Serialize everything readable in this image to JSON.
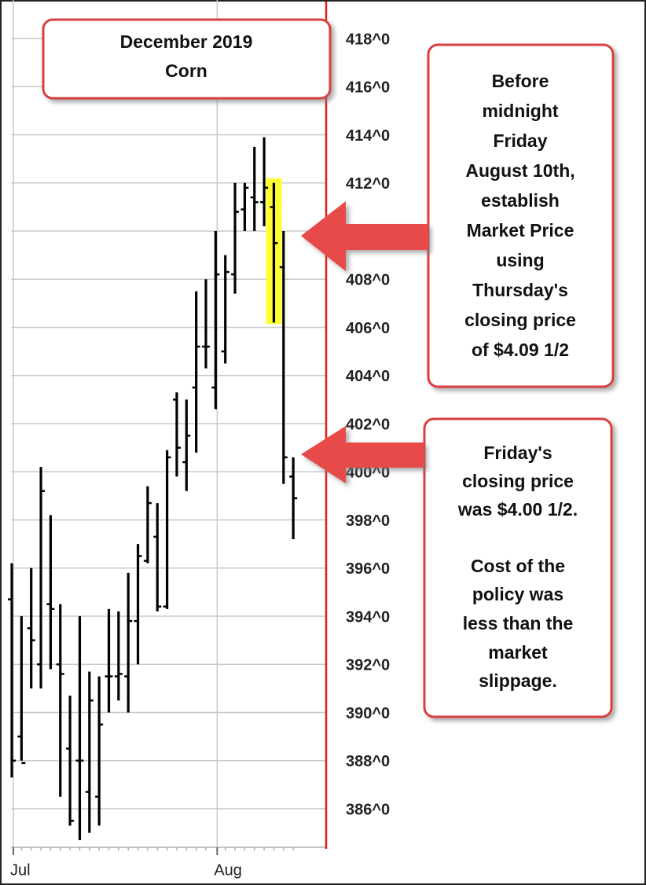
{
  "chart_data": {
    "type": "ohlc",
    "categories": [
      "Jul",
      null,
      null,
      null,
      null,
      null,
      null,
      null,
      null,
      null,
      null,
      null,
      null,
      null,
      null,
      null,
      null,
      null,
      null,
      null,
      null,
      "Aug",
      null,
      null,
      null,
      null,
      null,
      null,
      null,
      null
    ],
    "open": [
      394.7,
      389,
      393.5,
      392,
      394.5,
      392,
      388.5,
      388,
      386.7,
      386.5,
      391.5,
      391.5,
      391.5,
      393.8,
      396.3,
      397.3,
      394.4,
      403,
      400.4,
      403.5,
      405.2,
      403.5,
      405,
      408.2,
      410.9,
      411.4,
      411.2,
      411,
      408.5,
      399.8
    ],
    "high": [
      396.2,
      394,
      396,
      400.2,
      398.2,
      394.5,
      390.7,
      394,
      391.7,
      391.5,
      394.3,
      394.2,
      395.8,
      397,
      399.4,
      398.7,
      400.9,
      403.3,
      403,
      407.5,
      408,
      410,
      409,
      412,
      412,
      413.5,
      413.9,
      412,
      410,
      400.6
    ],
    "low": [
      387.3,
      388,
      391,
      391,
      391.8,
      386.5,
      385.3,
      384.7,
      385,
      385.3,
      390,
      390.5,
      390,
      392,
      396.2,
      394.2,
      394.3,
      399.8,
      399.2,
      400.8,
      404.3,
      402.6,
      404.5,
      407.4,
      410,
      410,
      410.2,
      406.2,
      399.5,
      397.2
    ],
    "close": [
      388,
      387.9,
      393,
      399.2,
      394.3,
      391.6,
      385.5,
      388,
      390.5,
      389.5,
      391.5,
      391.6,
      393.8,
      396.5,
      398.7,
      394.4,
      400.6,
      401,
      401.5,
      405.2,
      405.2,
      408.2,
      408.3,
      410.8,
      411.8,
      411.2,
      411.8,
      409.5,
      400.6,
      398.9
    ],
    "color": "#000000",
    "highlight_index": 27,
    "highlight_color": "#ffff33",
    "ylim": [
      384.4,
      419.6
    ],
    "yticks": [
      {
        "value": 386,
        "label": "386^0"
      },
      {
        "value": 388,
        "label": "388^0"
      },
      {
        "value": 390,
        "label": "390^0"
      },
      {
        "value": 392,
        "label": "392^0"
      },
      {
        "value": 394,
        "label": "394^0"
      },
      {
        "value": 396,
        "label": "396^0"
      },
      {
        "value": 398,
        "label": "398^0"
      },
      {
        "value": 400,
        "label": "400^0"
      },
      {
        "value": 402,
        "label": "402^0"
      },
      {
        "value": 404,
        "label": "404^0"
      },
      {
        "value": 406,
        "label": "406^0"
      },
      {
        "value": 408,
        "label": "408^0"
      },
      {
        "value": 410,
        "label": "410^0"
      },
      {
        "value": 412,
        "label": "412^0"
      },
      {
        "value": 414,
        "label": "414^0"
      },
      {
        "value": 416,
        "label": "416^0"
      },
      {
        "value": 418,
        "label": "418^0"
      }
    ],
    "grid": true,
    "annotations": [
      {
        "lines": [
          "December 2019",
          "Corn"
        ]
      },
      {
        "lines": [
          "Before",
          "midnight",
          "Friday",
          "August 10th,",
          "establish",
          "Market Price",
          "using",
          "Thursday's",
          "closing price",
          "of $4.09 1/2"
        ]
      },
      {
        "lines": [
          "Friday's",
          "closing price",
          "was $4.00 1/2.",
          "Cost of the",
          "policy was",
          "less than the",
          "market",
          "slippage."
        ]
      }
    ]
  }
}
